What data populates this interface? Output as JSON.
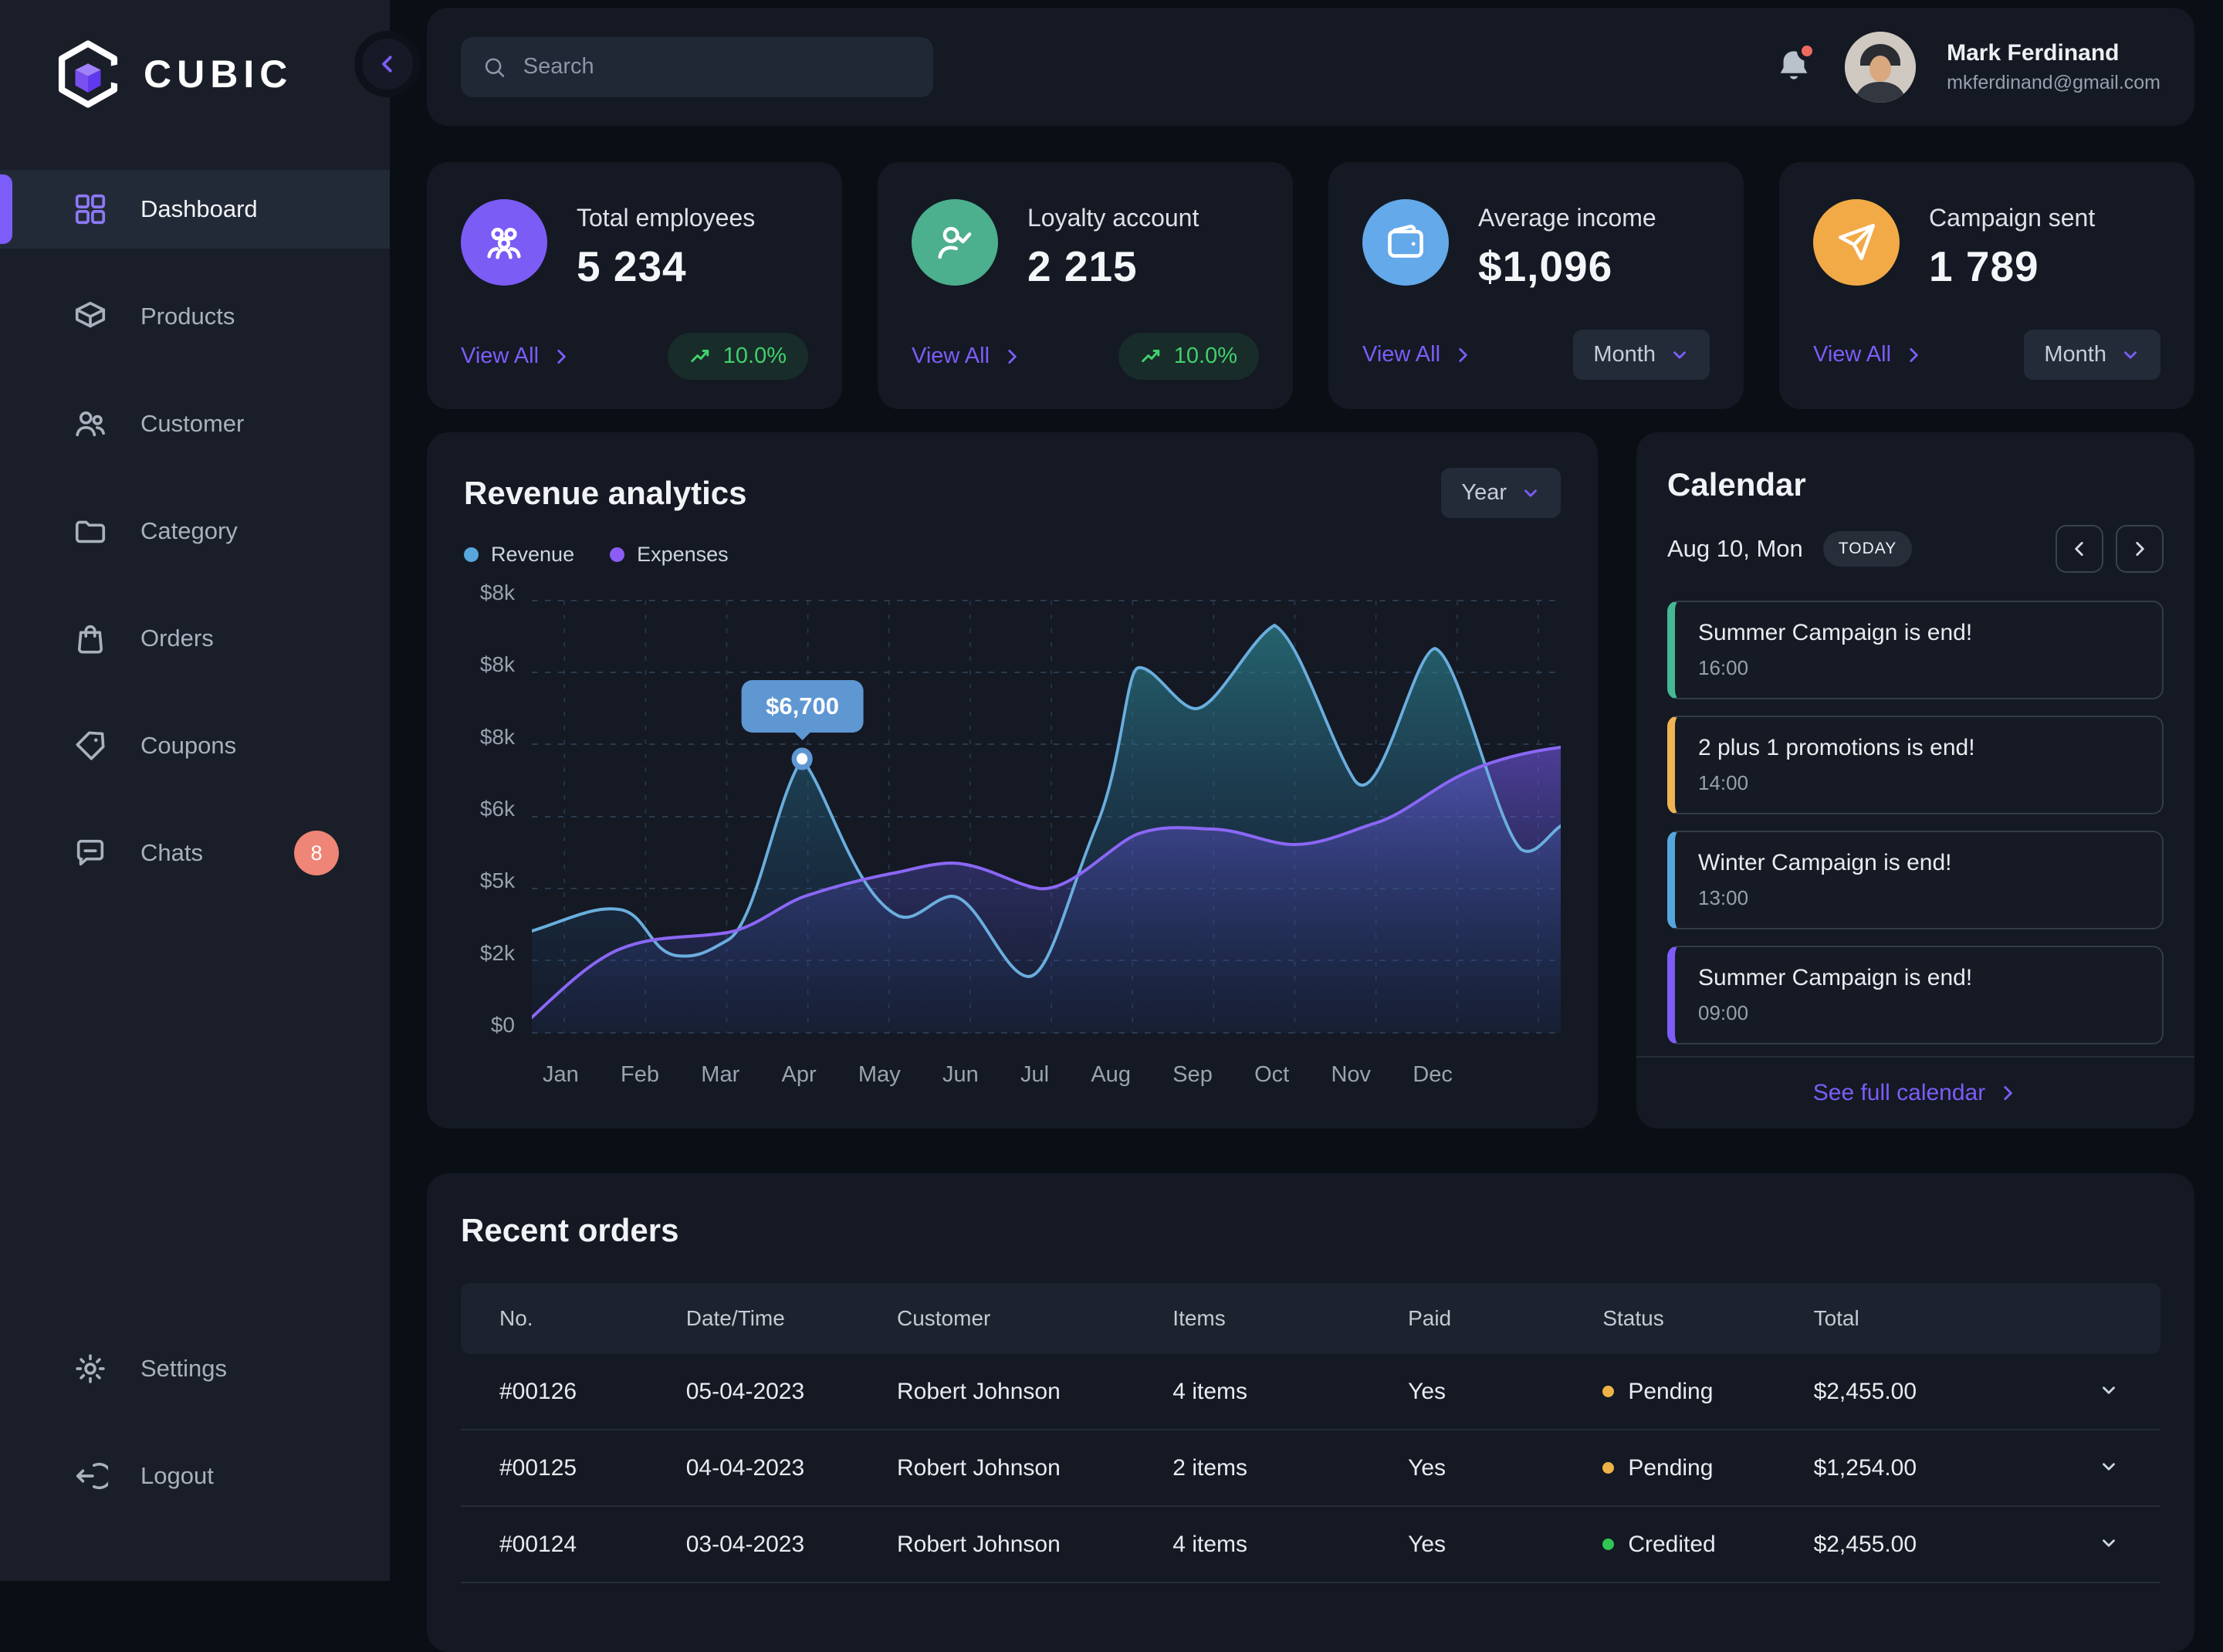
{
  "brand": {
    "name": "CUBIC"
  },
  "topbar": {
    "search_placeholder": "Search",
    "user_name": "Mark Ferdinand",
    "user_email": "mkferdinand@gmail.com"
  },
  "sidebar": {
    "items": [
      {
        "id": "dashboard",
        "label": "Dashboard",
        "active": true
      },
      {
        "id": "products",
        "label": "Products"
      },
      {
        "id": "customer",
        "label": "Customer"
      },
      {
        "id": "category",
        "label": "Category"
      },
      {
        "id": "orders",
        "label": "Orders"
      },
      {
        "id": "coupons",
        "label": "Coupons"
      },
      {
        "id": "chats",
        "label": "Chats",
        "badge": "8"
      }
    ],
    "footer_items": [
      {
        "id": "settings",
        "label": "Settings"
      },
      {
        "id": "logout",
        "label": "Logout"
      }
    ]
  },
  "stat_cards": [
    {
      "id": "total-employees",
      "title": "Total employees",
      "value": "5 234",
      "link": "View All",
      "trend": "10.0%",
      "icon": "users",
      "icon_bg": "#7b5cf5"
    },
    {
      "id": "loyalty-account",
      "title": "Loyalty account",
      "value": "2 215",
      "link": "View All",
      "trend": "10.0%",
      "icon": "user-check",
      "icon_bg": "#4caf8e"
    },
    {
      "id": "average-income",
      "title": "Average income",
      "value": "$1,096",
      "link": "View All",
      "dropdown": "Month",
      "icon": "wallet",
      "icon_bg": "#64a9ea"
    },
    {
      "id": "campaign-sent",
      "title": "Campaign sent",
      "value": "1 789",
      "link": "View All",
      "dropdown": "Month",
      "icon": "send",
      "icon_bg": "#f2aa47"
    }
  ],
  "revenue": {
    "title": "Revenue analytics",
    "period_dropdown": "Year",
    "legend": [
      {
        "label": "Revenue",
        "color": "#58a6dc"
      },
      {
        "label": "Expenses",
        "color": "#8b5cf6"
      }
    ],
    "tooltip": "$6,700",
    "y_labels": [
      "$8k",
      "$8k",
      "$8k",
      "$6k",
      "$5k",
      "$2k",
      "$0"
    ],
    "x_labels": [
      "Jan",
      "Feb",
      "Mar",
      "Apr",
      "May",
      "Jun",
      "Jul",
      "Aug",
      "Sep",
      "Oct",
      "Nov",
      "Dec"
    ]
  },
  "chart_data": {
    "type": "area",
    "title": "Revenue analytics",
    "x": [
      "Jan",
      "Feb",
      "Mar",
      "Apr",
      "May",
      "Jun",
      "Jul",
      "Aug",
      "Sep",
      "Oct",
      "Nov",
      "Dec"
    ],
    "series": [
      {
        "name": "Revenue",
        "color": "#58a6dc",
        "values": [
          2600,
          2400,
          2700,
          6700,
          2900,
          3300,
          1400,
          6900,
          7700,
          5500,
          7300,
          3400
        ]
      },
      {
        "name": "Expenses",
        "color": "#8b5cf6",
        "values": [
          300,
          1600,
          1900,
          2500,
          3000,
          3150,
          2700,
          3700,
          3800,
          3500,
          3900,
          4900
        ]
      }
    ],
    "annotations": [
      {
        "x": "Apr",
        "series": "Revenue",
        "label": "$6,700"
      }
    ],
    "ylim": [
      0,
      8000
    ],
    "y_tick_labels_top_to_bottom": [
      "$8k",
      "$8k",
      "$8k",
      "$6k",
      "$5k",
      "$2k",
      "$0"
    ],
    "grid": true,
    "legend_position": "top-left",
    "period": "Year"
  },
  "calendar": {
    "title": "Calendar",
    "date": "Aug 10, Mon",
    "today_badge": "TODAY",
    "events": [
      {
        "title": "Summer Campaign is end!",
        "time": "16:00",
        "accent": "#45b795"
      },
      {
        "title": "2 plus 1 promotions is end!",
        "time": "14:00",
        "accent": "#f0b454"
      },
      {
        "title": "Winter Campaign is end!",
        "time": "13:00",
        "accent": "#56a6de"
      },
      {
        "title": "Summer Campaign is end!",
        "time": "09:00",
        "accent": "#7e5cf8"
      }
    ],
    "footer_link": "See full calendar"
  },
  "orders": {
    "title": "Recent orders",
    "columns": [
      "No.",
      "Date/Time",
      "Customer",
      "Items",
      "Paid",
      "Status",
      "Total"
    ],
    "rows": [
      {
        "no": "#00126",
        "date": "05-04-2023",
        "customer": "Robert Johnson",
        "items": "4 items",
        "paid": "Yes",
        "status": "Pending",
        "status_color": "#eeb347",
        "total": "$2,455.00"
      },
      {
        "no": "#00125",
        "date": "04-04-2023",
        "customer": "Robert Johnson",
        "items": "2 items",
        "paid": "Yes",
        "status": "Pending",
        "status_color": "#eeb347",
        "total": "$1,254.00"
      },
      {
        "no": "#00124",
        "date": "03-04-2023",
        "customer": "Robert Johnson",
        "items": "4 items",
        "paid": "Yes",
        "status": "Credited",
        "status_color": "#2fc654",
        "total": "$2,455.00"
      }
    ]
  },
  "colors": {
    "accent": "#7c5dfa",
    "positive": "#42d06a",
    "chats_badge": "#ee8576",
    "tooltip_bg": "#5e97d2"
  }
}
